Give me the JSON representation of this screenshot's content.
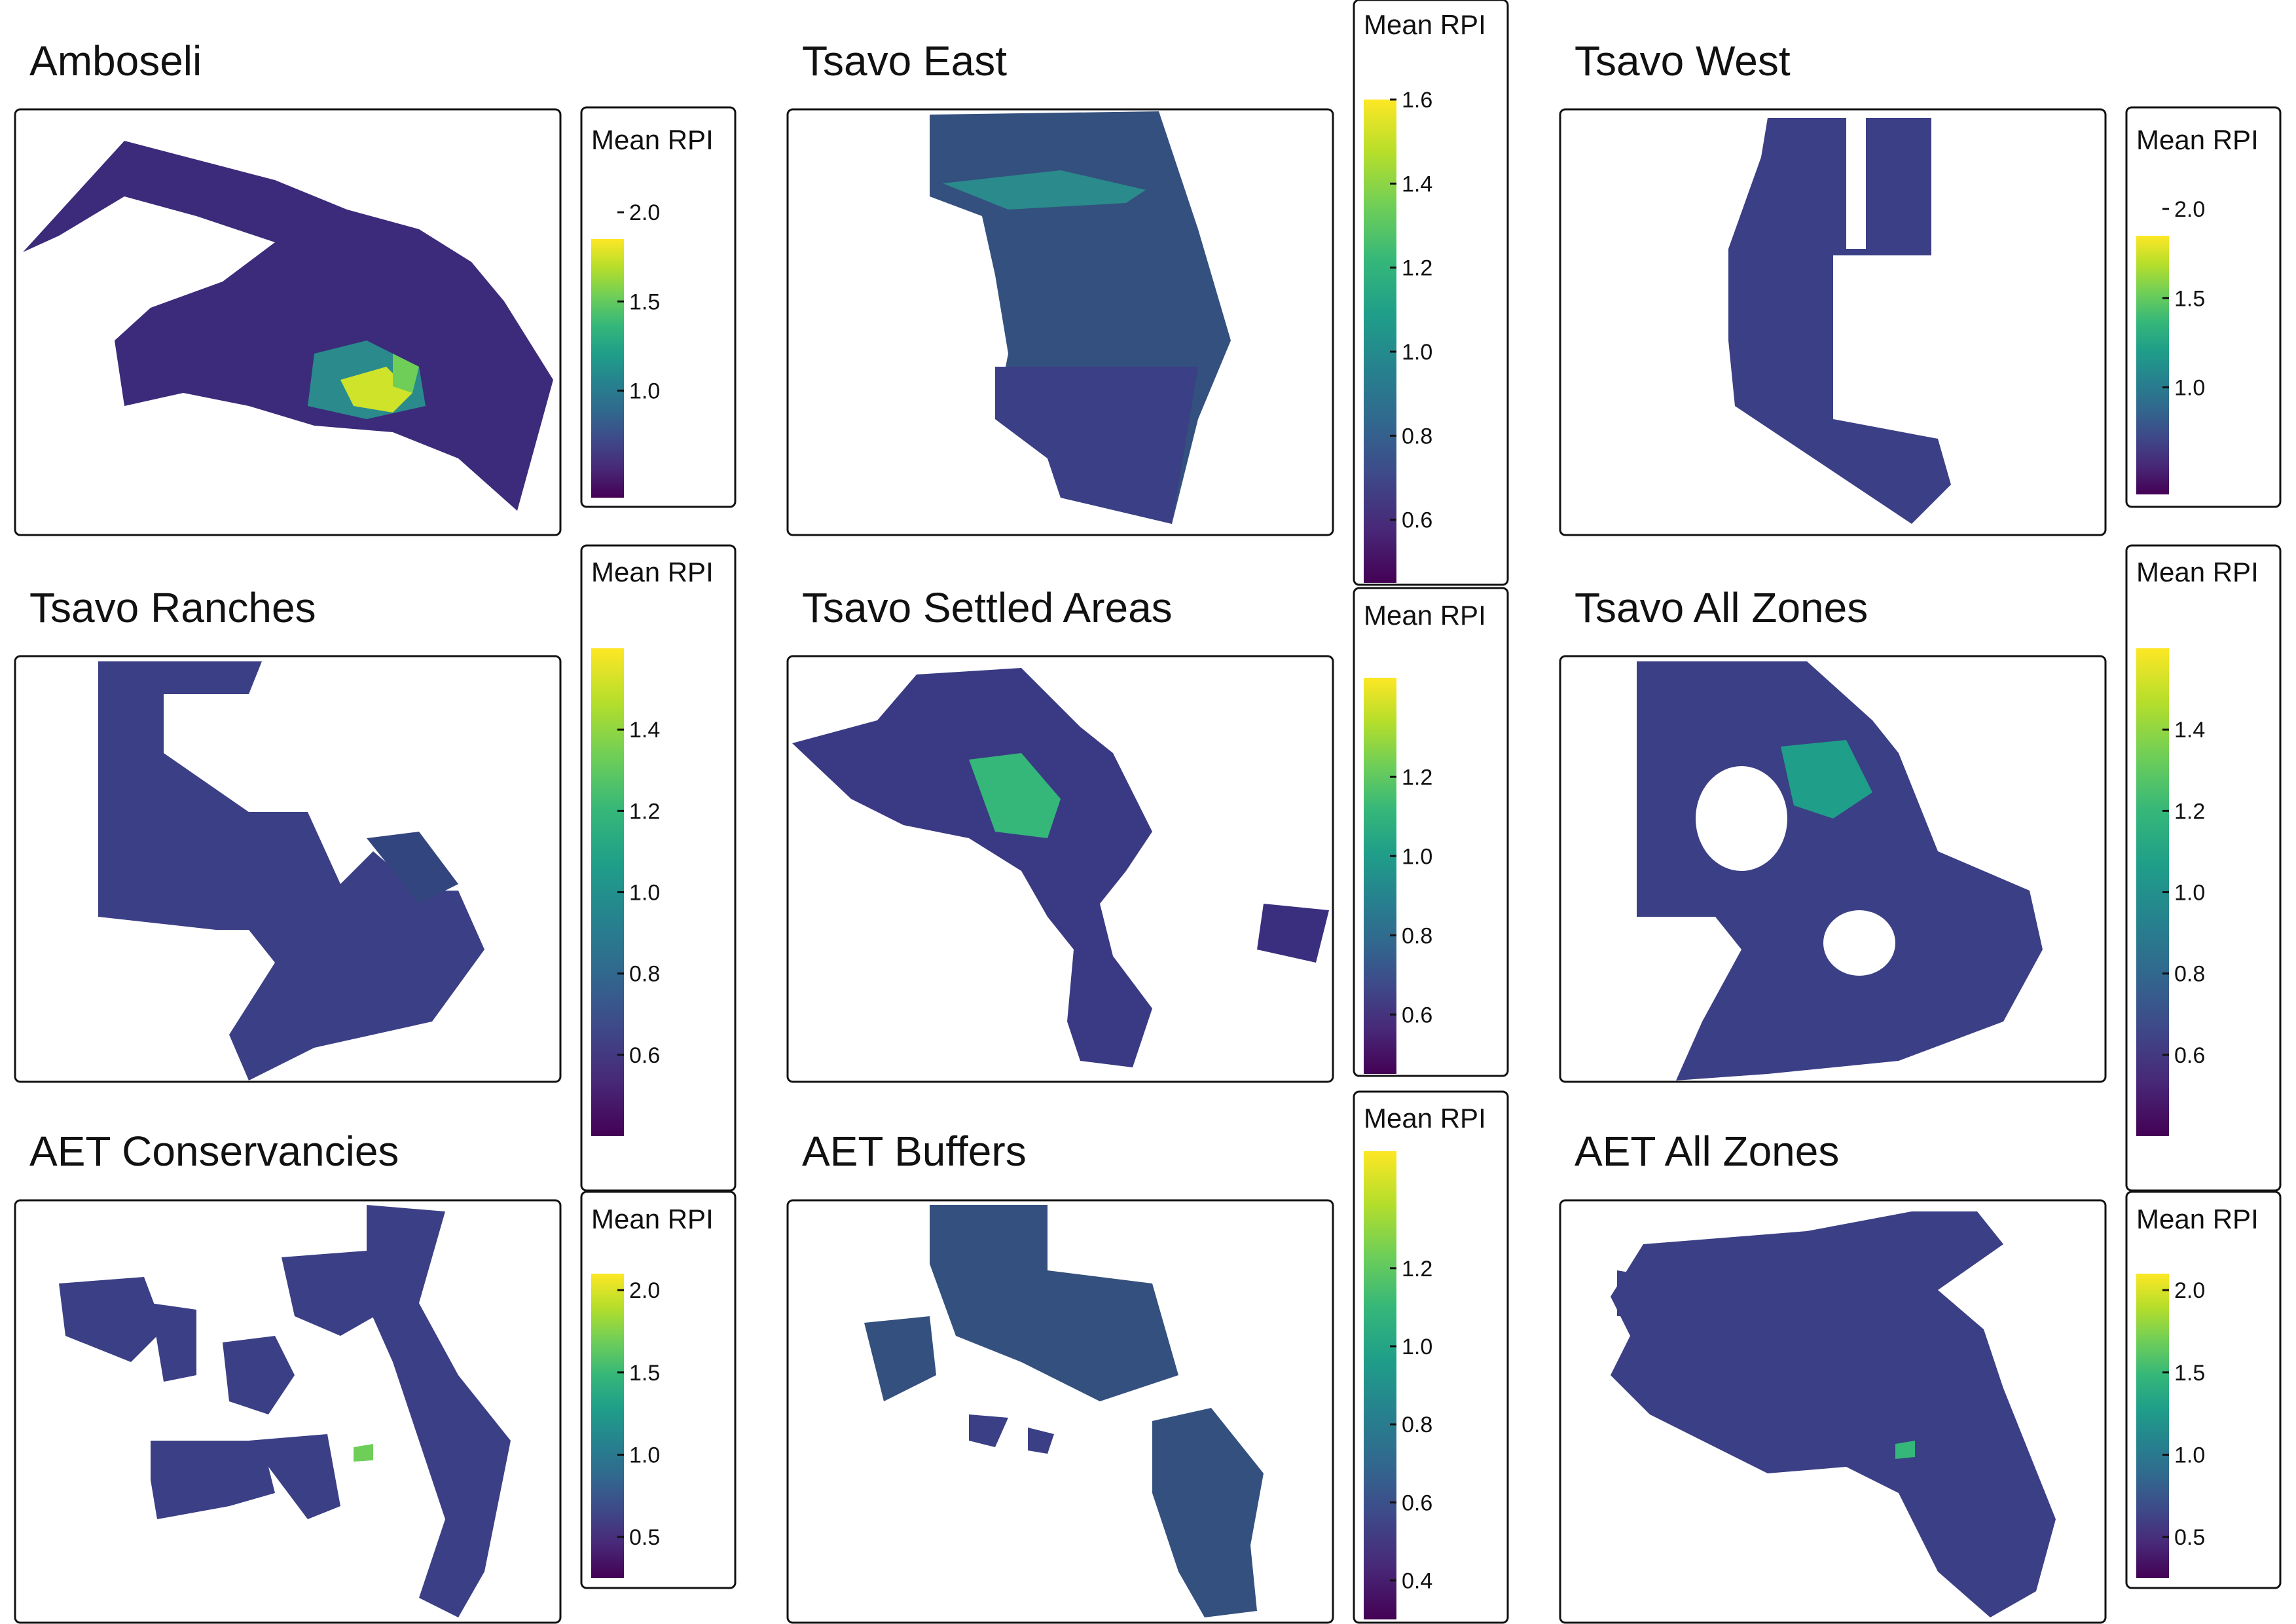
{
  "figure": {
    "legend_title": "Mean RPI",
    "palette": [
      "#440154",
      "#482878",
      "#3e4989",
      "#31688e",
      "#26828e",
      "#1f9e89",
      "#35b779",
      "#6ece58",
      "#b5de2b",
      "#fde725"
    ],
    "background_color": "#ffffff",
    "boundary_color": "#ffffff",
    "panels": [
      {
        "title": "Amboseli",
        "legend": {
          "min": 0.4,
          "max": 1.85,
          "ticks": [
            1.0,
            1.5,
            2.0
          ]
        }
      },
      {
        "title": "Tsavo East",
        "legend": {
          "min": 0.45,
          "max": 1.6,
          "ticks": [
            0.6,
            0.8,
            1.0,
            1.2,
            1.4,
            1.6
          ]
        }
      },
      {
        "title": "Tsavo West",
        "legend": {
          "min": 0.4,
          "max": 1.85,
          "ticks": [
            1.0,
            1.5,
            2.0
          ]
        }
      },
      {
        "title": "Tsavo Ranches",
        "legend": {
          "min": 0.4,
          "max": 1.6,
          "ticks": [
            0.6,
            0.8,
            1.0,
            1.2,
            1.4
          ]
        }
      },
      {
        "title": "Tsavo Settled Areas",
        "legend": {
          "min": 0.45,
          "max": 1.45,
          "ticks": [
            0.6,
            0.8,
            1.0,
            1.2
          ]
        }
      },
      {
        "title": "Tsavo All Zones",
        "legend": {
          "min": 0.4,
          "max": 1.6,
          "ticks": [
            0.6,
            0.8,
            1.0,
            1.2,
            1.4
          ]
        }
      },
      {
        "title": "AET Conservancies",
        "legend": {
          "min": 0.25,
          "max": 2.1,
          "ticks": [
            0.5,
            1.0,
            1.5,
            2.0
          ]
        }
      },
      {
        "title": "AET Buffers",
        "legend": {
          "min": 0.3,
          "max": 1.5,
          "ticks": [
            0.4,
            0.6,
            0.8,
            1.0,
            1.2
          ]
        }
      },
      {
        "title": "AET All Zones",
        "legend": {
          "min": 0.25,
          "max": 2.1,
          "ticks": [
            0.5,
            1.0,
            1.5,
            2.0
          ]
        }
      }
    ]
  }
}
